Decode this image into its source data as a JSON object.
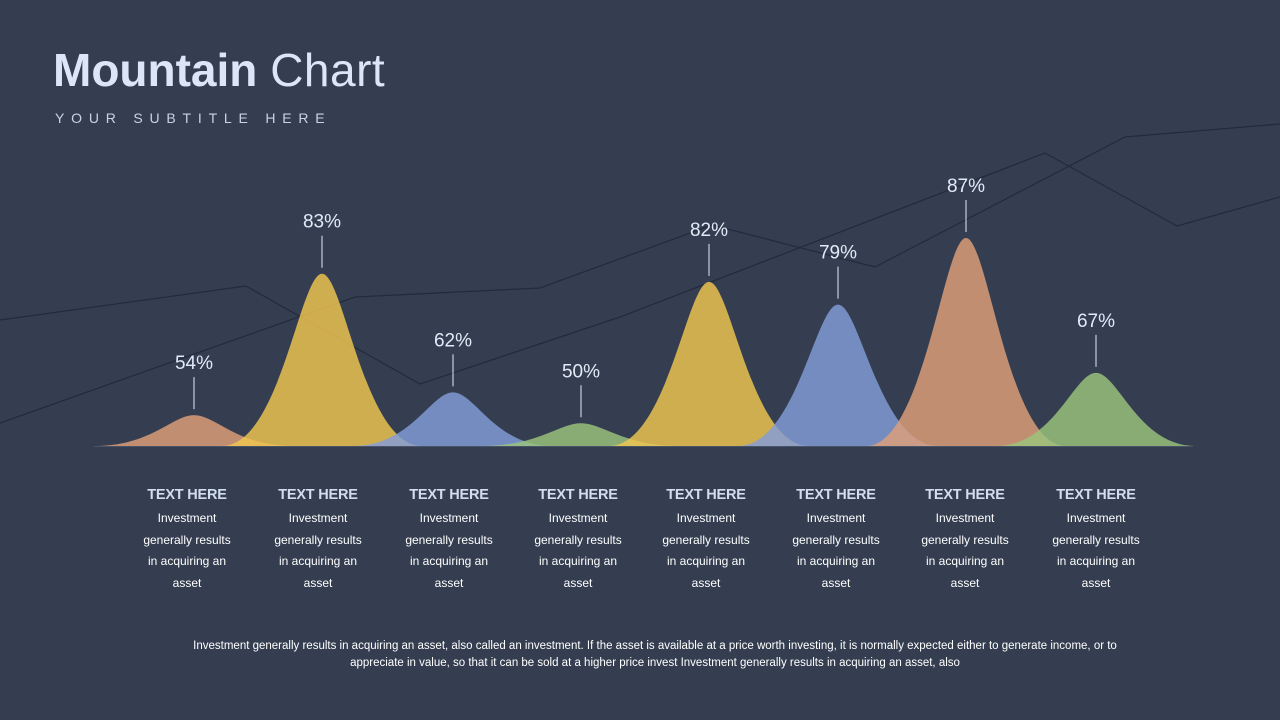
{
  "slide": {
    "title_bold": "Mountain",
    "title_light": "Chart",
    "subtitle": "YOUR SUBTITLE HERE",
    "footer": "Investment generally results in acquiring an asset, also called an investment. If the asset is available at a price worth investing, it is normally expected either to generate income, or to appreciate in value, so that it can be sold at a higher price invest Investment generally results in acquiring an asset, also"
  },
  "chart_data": {
    "type": "area",
    "subtype": "mountain",
    "title": "Mountain Chart",
    "categories": [
      "TEXT HERE",
      "TEXT HERE",
      "TEXT HERE",
      "TEXT HERE",
      "TEXT HERE",
      "TEXT HERE",
      "TEXT HERE",
      "TEXT HERE"
    ],
    "values": [
      54,
      83,
      62,
      50,
      82,
      79,
      87,
      67
    ],
    "labels": [
      "54%",
      "83%",
      "62%",
      "50%",
      "82%",
      "79%",
      "87%",
      "67%"
    ],
    "colors": [
      "#e0a07a",
      "#f2c750",
      "#839ed9",
      "#9bc57c",
      "#f2c750",
      "#839ed9",
      "#e0a07a",
      "#9bc57c"
    ],
    "unit": "%",
    "ylim": [
      0,
      100
    ]
  },
  "columns": [
    {
      "title": "TEXT HERE",
      "text": "Investment generally results in acquiring an asset"
    },
    {
      "title": "TEXT HERE",
      "text": "Investment generally results in acquiring an asset"
    },
    {
      "title": "TEXT HERE",
      "text": "Investment generally results in acquiring an asset"
    },
    {
      "title": "TEXT HERE",
      "text": "Investment generally results in acquiring an asset"
    },
    {
      "title": "TEXT HERE",
      "text": "Investment generally results in acquiring an asset"
    },
    {
      "title": "TEXT HERE",
      "text": "Investment generally results in acquiring an asset"
    },
    {
      "title": "TEXT HERE",
      "text": "Investment generally results in acquiring an asset"
    },
    {
      "title": "TEXT HERE",
      "text": "Investment generally results in acquiring an asset"
    }
  ],
  "theme": {
    "background": "#343e50",
    "decor_line": "#222b3a"
  }
}
